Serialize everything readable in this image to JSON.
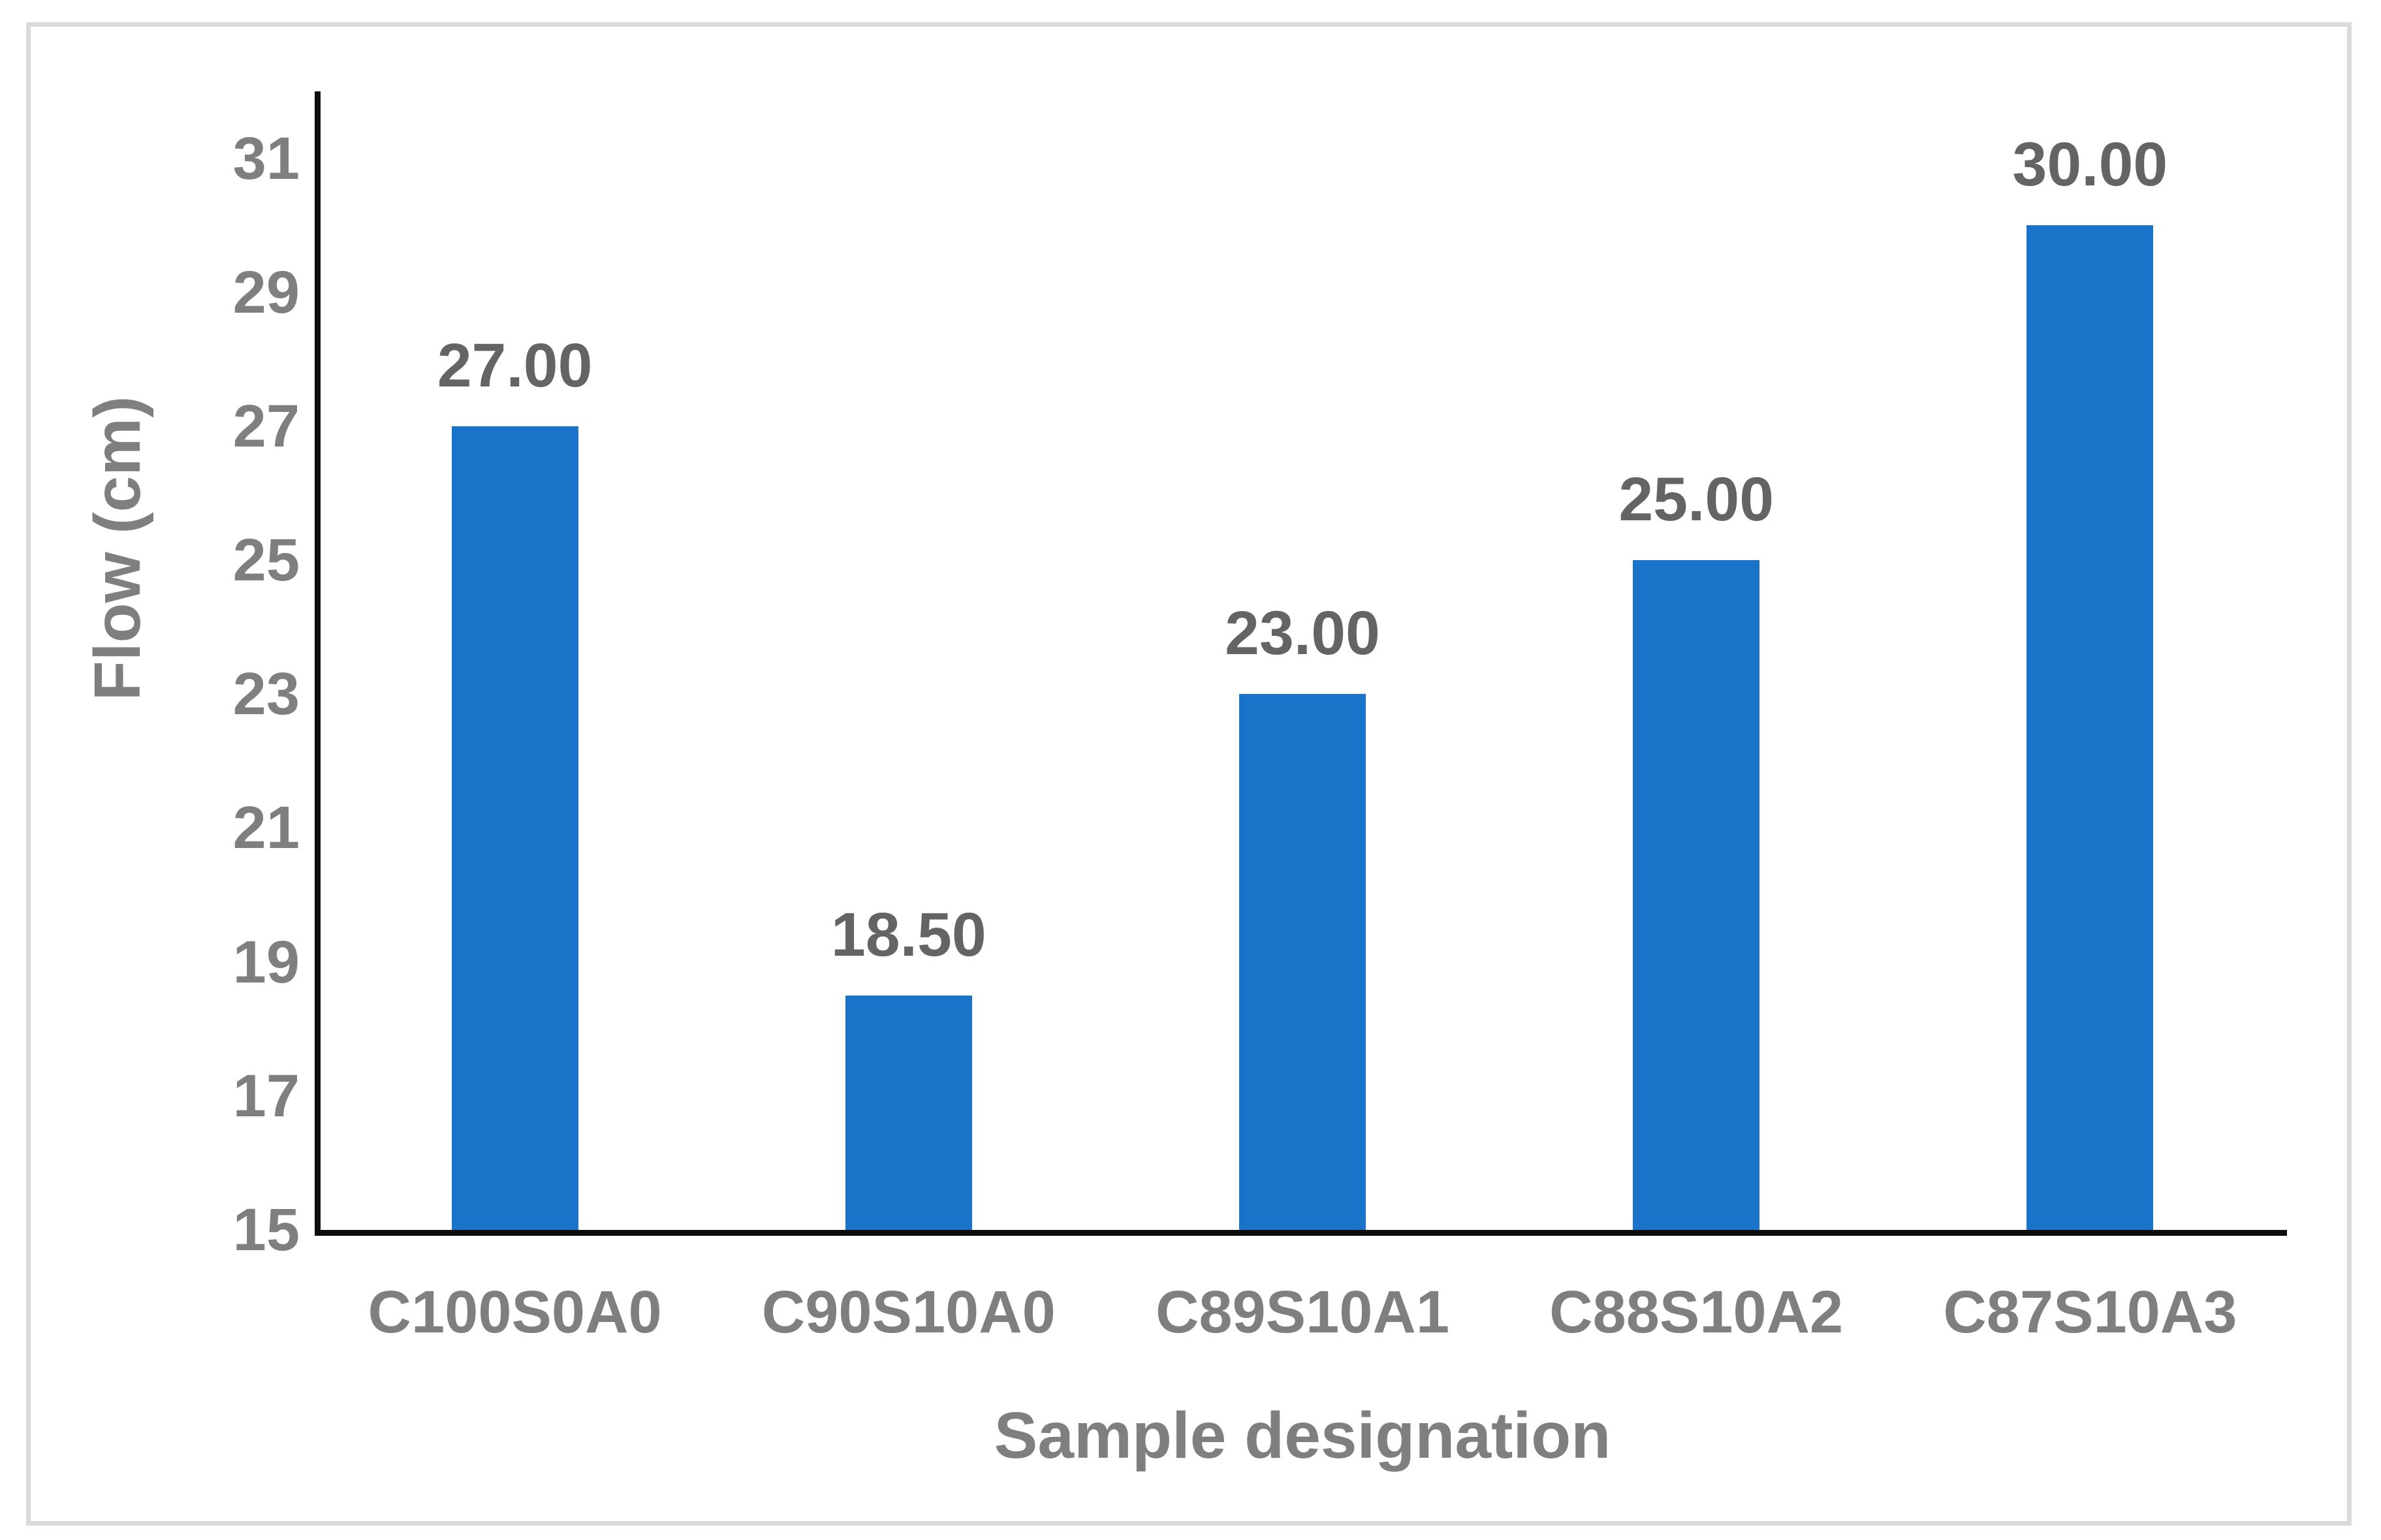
{
  "chart_data": {
    "type": "bar",
    "title": "",
    "xlabel": "Sample designation",
    "ylabel": "Flow (cm)",
    "categories": [
      "C100S0A0",
      "C90S10A0",
      "C89S10A1",
      "C88S10A2",
      "C87S10A3"
    ],
    "values": [
      27.0,
      18.5,
      23.0,
      25.0,
      30.0
    ],
    "data_labels": [
      "27.00",
      "18.50",
      "23.00",
      "25.00",
      "30.00"
    ],
    "ylim": [
      15,
      32
    ],
    "yticks": [
      15,
      17,
      19,
      21,
      23,
      25,
      27,
      29,
      31
    ],
    "ytick_labels": [
      "15",
      "17",
      "19",
      "21",
      "23",
      "25",
      "27",
      "29",
      "31"
    ],
    "grid": false,
    "legend": false,
    "series_count": 1,
    "colors": {
      "bar": "#1973C8",
      "axis_line": "#0D0D0D",
      "tick_label": "#7F7F7F",
      "category_label": "#7F7F7F",
      "data_label": "#646464",
      "axis_title": "#7F7F7F",
      "frame_border": "#DBDBDB",
      "background": "#FFFFFF"
    }
  }
}
